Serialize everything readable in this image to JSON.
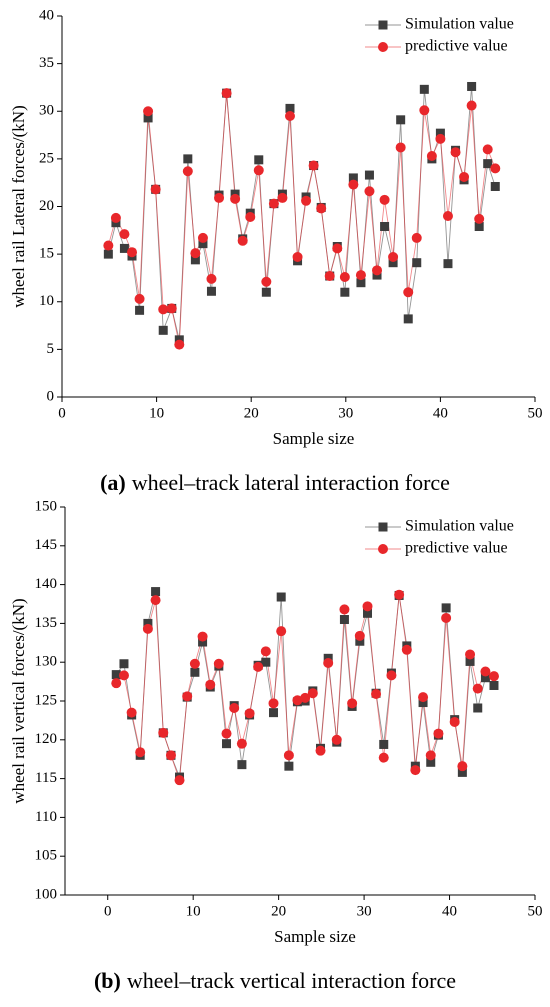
{
  "chart_data": [
    {
      "type": "line",
      "caption_label": "(a)",
      "caption": "wheel–track lateral interaction force",
      "xlabel": "Sample size",
      "ylabel": "wheel rail Lateral forces/(kN)",
      "xlim": [
        0,
        50
      ],
      "xticks": [
        0,
        10,
        20,
        30,
        40,
        50
      ],
      "ylim": [
        0,
        40
      ],
      "yticks": [
        0,
        5,
        10,
        15,
        20,
        25,
        30,
        35,
        40
      ],
      "legend": "upper right",
      "x": [
        4.9,
        5.7,
        6.6,
        7.4,
        8.2,
        9.1,
        9.9,
        10.7,
        11.6,
        12.4,
        13.3,
        14.1,
        14.9,
        15.8,
        16.6,
        17.4,
        18.3,
        19.1,
        19.9,
        20.8,
        21.6,
        22.4,
        23.3,
        24.1,
        24.9,
        25.8,
        26.6,
        27.4,
        28.3,
        29.1,
        29.9,
        30.8,
        31.6,
        32.5,
        33.3,
        34.1,
        35.0,
        35.8,
        36.6,
        37.5,
        38.3,
        39.1,
        40.0,
        40.8,
        41.6,
        42.5,
        43.3,
        44.1,
        45.0,
        45.8
      ],
      "series": [
        {
          "name": "Simulation value",
          "color": "#3d3d3d",
          "marker": "square",
          "values": [
            15.0,
            18.3,
            15.6,
            14.8,
            9.1,
            29.3,
            21.8,
            7.0,
            9.3,
            6.0,
            25.0,
            14.4,
            16.1,
            11.1,
            21.2,
            31.9,
            21.3,
            16.6,
            19.3,
            24.9,
            11.0,
            20.3,
            21.3,
            30.3,
            14.3,
            21.0,
            24.3,
            19.9,
            12.7,
            15.8,
            11.0,
            23.0,
            12.0,
            23.3,
            12.8,
            17.9,
            14.1,
            29.1,
            8.2,
            14.1,
            32.3,
            25.0,
            27.7,
            14.0,
            25.9,
            22.8,
            32.6,
            17.9,
            24.5,
            22.1
          ]
        },
        {
          "name": "predictive value",
          "color": "#e8272b",
          "marker": "circle",
          "values": [
            15.9,
            18.8,
            17.1,
            15.2,
            10.3,
            30.0,
            21.8,
            9.2,
            9.3,
            5.5,
            23.7,
            15.1,
            16.7,
            12.4,
            20.9,
            31.9,
            20.8,
            16.4,
            18.9,
            23.8,
            12.1,
            20.3,
            20.9,
            29.5,
            14.7,
            20.6,
            24.3,
            19.8,
            12.7,
            15.6,
            12.6,
            22.3,
            12.8,
            21.6,
            13.3,
            20.7,
            14.7,
            26.2,
            11.0,
            16.7,
            30.1,
            25.3,
            27.1,
            19.0,
            25.7,
            23.1,
            30.6,
            18.7,
            26.0,
            24.0
          ]
        }
      ]
    },
    {
      "type": "line",
      "caption_label": "(b)",
      "caption": "wheel–track vertical interaction force",
      "xlabel": "Sample size",
      "ylabel": "wheel rail vertical forces/(kN)",
      "xlim": [
        -5,
        50
      ],
      "xticks": [
        0,
        10,
        20,
        30,
        40,
        50
      ],
      "ylim": [
        100,
        150
      ],
      "yticks": [
        100,
        105,
        110,
        115,
        120,
        125,
        130,
        135,
        140,
        145,
        150
      ],
      "legend": "upper right",
      "x": [
        1.0,
        1.9,
        2.8,
        3.8,
        4.7,
        5.6,
        6.5,
        7.4,
        8.4,
        9.3,
        10.2,
        11.1,
        12.0,
        13.0,
        13.9,
        14.8,
        15.7,
        16.6,
        17.6,
        18.5,
        19.4,
        20.3,
        21.2,
        22.2,
        23.1,
        24.0,
        24.9,
        25.8,
        26.8,
        27.7,
        28.6,
        29.5,
        30.4,
        31.4,
        32.3,
        33.2,
        34.1,
        35.0,
        36.0,
        36.9,
        37.8,
        38.7,
        39.6,
        40.6,
        41.5,
        42.4,
        43.3,
        44.2,
        45.2
      ],
      "series": [
        {
          "name": "Simulation value",
          "color": "#3d3d3d",
          "marker": "square",
          "values": [
            128.4,
            129.8,
            123.2,
            118.0,
            135.0,
            139.1,
            120.9,
            118.0,
            115.2,
            125.5,
            128.7,
            132.6,
            126.8,
            129.5,
            119.5,
            124.4,
            116.8,
            123.2,
            129.6,
            130.0,
            123.5,
            138.4,
            116.6,
            124.9,
            125.0,
            126.3,
            118.9,
            130.5,
            119.7,
            135.5,
            124.3,
            132.7,
            136.3,
            126.0,
            119.4,
            128.6,
            138.6,
            132.1,
            116.6,
            124.8,
            117.1,
            120.6,
            137.0,
            122.6,
            115.8,
            130.1,
            124.1,
            128.0,
            127.0
          ]
        },
        {
          "name": "predictive value",
          "color": "#e8272b",
          "marker": "circle",
          "values": [
            127.3,
            128.3,
            123.5,
            118.4,
            134.3,
            138.0,
            120.9,
            118.0,
            114.8,
            125.6,
            129.8,
            133.3,
            127.1,
            129.8,
            120.8,
            124.1,
            119.5,
            123.4,
            129.4,
            131.4,
            124.7,
            134.0,
            118.0,
            125.1,
            125.4,
            126.0,
            118.6,
            129.9,
            120.0,
            136.8,
            124.7,
            133.4,
            137.2,
            125.9,
            117.7,
            128.3,
            138.7,
            131.6,
            116.1,
            125.5,
            118.0,
            120.8,
            135.7,
            122.3,
            116.6,
            131.0,
            126.6,
            128.8,
            128.2
          ]
        }
      ]
    }
  ]
}
